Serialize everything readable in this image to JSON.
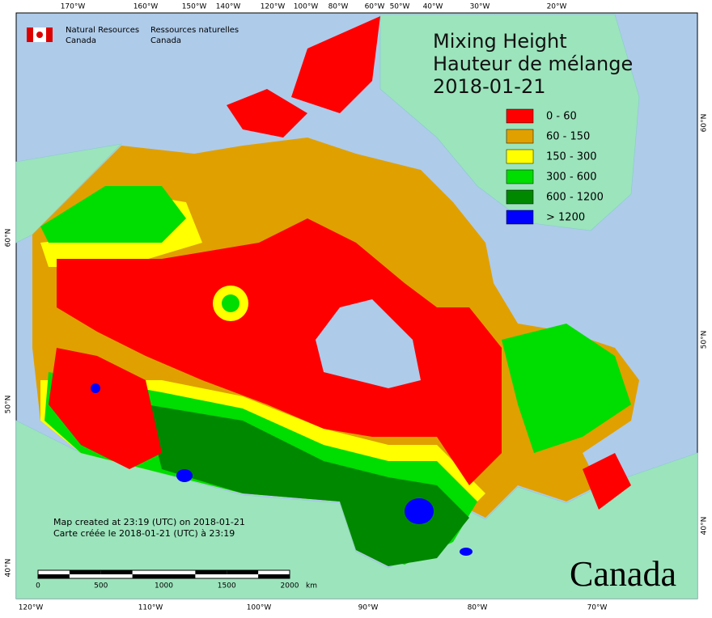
{
  "header": {
    "agency_en": "Natural Resources",
    "agency_en_2": "Canada",
    "agency_fr": "Ressources naturelles",
    "agency_fr_2": "Canada"
  },
  "title": {
    "line1": "Mixing Height",
    "line2": "Hauteur de mélange",
    "date": "2018-01-21"
  },
  "legend": [
    {
      "label": "0 - 60",
      "color": "#ff0000"
    },
    {
      "label": "60 - 150",
      "color": "#e0a000"
    },
    {
      "label": "150 - 300",
      "color": "#ffff00"
    },
    {
      "label": "300 - 600",
      "color": "#00dd00"
    },
    {
      "label": "600 - 1200",
      "color": "#008800"
    },
    {
      "label": "> 1200",
      "color": "#0000ff"
    }
  ],
  "notes": [
    "Map created at 23:19 (UTC) on 2018-01-21",
    "Carte créée le 2018-01-21 (UTC) à 23:19"
  ],
  "scale_bar": {
    "ticks": [
      0,
      500,
      1000,
      1500,
      2000
    ],
    "unit": "km"
  },
  "graticule": {
    "top": [
      "170°W",
      "160°W",
      "150°W",
      "140°W",
      "120°W",
      "100°W",
      "80°W",
      "60°W",
      "50°W",
      "40°W",
      "30°W",
      "20°W"
    ],
    "bottom": [
      "120°W",
      "110°W",
      "100°W",
      "90°W",
      "80°W",
      "70°W"
    ],
    "left": [
      "60°N",
      "50°N",
      "40°N"
    ],
    "right": [
      "60°N",
      "50°N",
      "40°N"
    ]
  },
  "wordmark": "Canada"
}
